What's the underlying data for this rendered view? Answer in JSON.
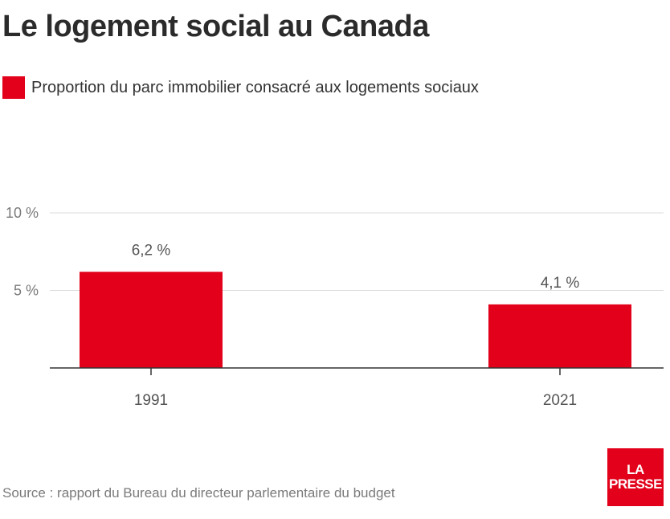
{
  "title": "Le logement social au Canada",
  "legend": {
    "label": "Proportion du parc immobilier consacré aux logements sociaux",
    "color": "#e2001a"
  },
  "chart_data": {
    "type": "bar",
    "categories": [
      "1991",
      "2021"
    ],
    "values": [
      6.2,
      4.1
    ],
    "value_labels": [
      "6,2 %",
      "4,1 %"
    ],
    "yticks": [
      5,
      10
    ],
    "ytick_labels": [
      "5 %",
      "10 %"
    ],
    "ylim": [
      0,
      10
    ],
    "series_name": "Proportion du parc immobilier consacré aux logements sociaux",
    "title": "Le logement social au Canada",
    "xlabel": "",
    "ylabel": "",
    "grid": true
  },
  "source": "Source : rapport du Bureau du directeur parlementaire du budget",
  "logo": {
    "line1": "LA",
    "line2": "PRESSE",
    "color": "#e2001a"
  }
}
